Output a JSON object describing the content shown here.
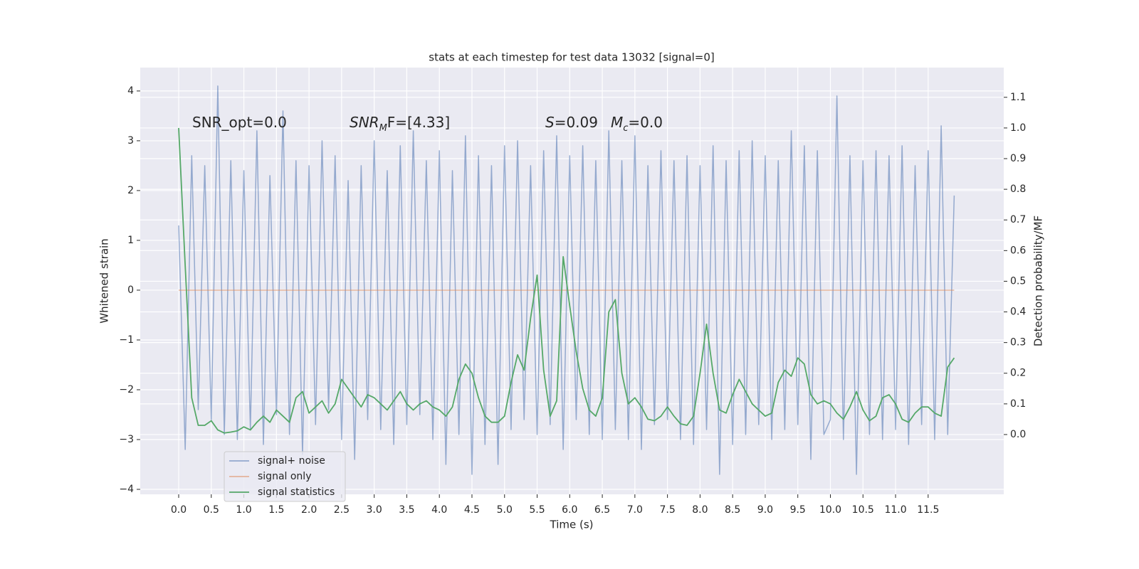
{
  "chart_data": {
    "type": "line",
    "title": "stats at each timestep for test data 13032 [signal=0]",
    "xlabel": "Time (s)",
    "ylabel": "Whitened strain",
    "y2label": "Detection probability/MF",
    "annotations": [
      [
        {
          "text": "SNR_opt=0.0"
        }
      ],
      [
        {
          "text": "SNR",
          "italic": true
        },
        {
          "text": "M",
          "italic": true,
          "sub": true
        },
        {
          "text": "F=[4.33]"
        }
      ],
      [
        {
          "text": "S",
          "italic": true
        },
        {
          "text": "=0.09"
        }
      ],
      [
        {
          "text": "M",
          "italic": true
        },
        {
          "text": "c",
          "italic": true,
          "sub": true
        },
        {
          "text": "=0.0"
        }
      ]
    ],
    "x": [
      0.0,
      0.1,
      0.2,
      0.3,
      0.4,
      0.5,
      0.6,
      0.7,
      0.8,
      0.9,
      1.0,
      1.1,
      1.2,
      1.3,
      1.4,
      1.5,
      1.6,
      1.7,
      1.8,
      1.9,
      2.0,
      2.1,
      2.2,
      2.3,
      2.4,
      2.5,
      2.6,
      2.7,
      2.8,
      2.9,
      3.0,
      3.1,
      3.2,
      3.3,
      3.4,
      3.5,
      3.6,
      3.7,
      3.8,
      3.9,
      4.0,
      4.1,
      4.2,
      4.3,
      4.4,
      4.5,
      4.6,
      4.7,
      4.8,
      4.9,
      5.0,
      5.1,
      5.2,
      5.3,
      5.4,
      5.5,
      5.6,
      5.7,
      5.8,
      5.9,
      6.0,
      6.1,
      6.2,
      6.3,
      6.4,
      6.5,
      6.6,
      6.7,
      6.8,
      6.9,
      7.0,
      7.1,
      7.2,
      7.3,
      7.4,
      7.5,
      7.6,
      7.7,
      7.8,
      7.9,
      8.0,
      8.1,
      8.2,
      8.3,
      8.4,
      8.5,
      8.6,
      8.7,
      8.8,
      8.9,
      9.0,
      9.1,
      9.2,
      9.3,
      9.4,
      9.5,
      9.6,
      9.7,
      9.8,
      9.9,
      10.0,
      10.1,
      10.2,
      10.3,
      10.4,
      10.5,
      10.6,
      10.7,
      10.8,
      10.9,
      11.0,
      11.1,
      11.2,
      11.3,
      11.4,
      11.5,
      11.6,
      11.7,
      11.8,
      11.9
    ],
    "series": [
      {
        "name": "signal+ noise",
        "color": "#4c72b0",
        "values": [
          1.3,
          -3.2,
          2.7,
          -2.4,
          2.5,
          -2.6,
          4.1,
          -2.9,
          2.6,
          -3.0,
          2.4,
          -2.8,
          3.2,
          -3.1,
          2.3,
          -2.5,
          3.6,
          -2.9,
          2.6,
          -3.3,
          2.5,
          -2.7,
          3.0,
          -2.4,
          2.7,
          -3.0,
          2.2,
          -3.4,
          2.5,
          -2.6,
          3.0,
          -2.8,
          2.4,
          -3.1,
          2.9,
          -2.7,
          3.2,
          -2.5,
          2.6,
          -3.0,
          2.8,
          -3.5,
          2.4,
          -2.9,
          3.1,
          -3.7,
          2.7,
          -3.1,
          2.5,
          -3.5,
          2.9,
          -2.8,
          3.0,
          -2.6,
          2.5,
          -2.9,
          2.8,
          -2.7,
          3.1,
          -3.2,
          2.7,
          -2.6,
          2.9,
          -2.9,
          2.6,
          -3.0,
          3.2,
          -2.8,
          2.6,
          -3.0,
          3.1,
          -3.2,
          2.5,
          -2.7,
          2.8,
          -2.6,
          2.6,
          -3.0,
          2.7,
          -3.1,
          2.5,
          -2.8,
          2.9,
          -3.7,
          2.6,
          -3.1,
          2.8,
          -2.9,
          3.0,
          -2.7,
          2.7,
          -3.0,
          2.6,
          -2.8,
          3.2,
          -2.7,
          2.9,
          -3.4,
          2.8,
          -2.9,
          -2.6,
          3.9,
          -3.0,
          2.7,
          -3.7,
          2.6,
          -2.9,
          2.8,
          -3.0,
          2.7,
          -2.8,
          2.9,
          -3.1,
          2.5,
          -2.7,
          2.8,
          -3.0,
          3.3,
          -2.9,
          1.9
        ]
      },
      {
        "name": "signal only",
        "color": "#dd8452",
        "values": [
          0,
          0,
          0,
          0,
          0,
          0,
          0,
          0,
          0,
          0,
          0,
          0,
          0,
          0,
          0,
          0,
          0,
          0,
          0,
          0,
          0,
          0,
          0,
          0,
          0,
          0,
          0,
          0,
          0,
          0,
          0,
          0,
          0,
          0,
          0,
          0,
          0,
          0,
          0,
          0,
          0,
          0,
          0,
          0,
          0,
          0,
          0,
          0,
          0,
          0,
          0,
          0,
          0,
          0,
          0,
          0,
          0,
          0,
          0,
          0,
          0,
          0,
          0,
          0,
          0,
          0,
          0,
          0,
          0,
          0,
          0,
          0,
          0,
          0,
          0,
          0,
          0,
          0,
          0,
          0,
          0,
          0,
          0,
          0,
          0,
          0,
          0,
          0,
          0,
          0,
          0,
          0,
          0,
          0,
          0,
          0,
          0,
          0,
          0,
          0,
          0,
          0,
          0,
          0,
          0,
          0,
          0,
          0,
          0,
          0,
          0,
          0,
          0,
          0,
          0,
          0,
          0,
          0,
          0,
          0
        ]
      },
      {
        "name": "signal statistics",
        "color": "#55a868",
        "axis": "y2",
        "values": [
          1.0,
          0.55,
          0.12,
          0.03,
          0.03,
          0.045,
          0.015,
          0.005,
          0.008,
          0.012,
          0.025,
          0.015,
          0.04,
          0.06,
          0.04,
          0.08,
          0.06,
          0.04,
          0.12,
          0.14,
          0.07,
          0.09,
          0.11,
          0.07,
          0.1,
          0.18,
          0.15,
          0.12,
          0.09,
          0.13,
          0.12,
          0.1,
          0.08,
          0.11,
          0.14,
          0.1,
          0.08,
          0.1,
          0.11,
          0.09,
          0.08,
          0.06,
          0.09,
          0.18,
          0.23,
          0.2,
          0.12,
          0.06,
          0.04,
          0.04,
          0.06,
          0.17,
          0.26,
          0.21,
          0.38,
          0.52,
          0.21,
          0.06,
          0.11,
          0.58,
          0.42,
          0.27,
          0.15,
          0.08,
          0.06,
          0.12,
          0.4,
          0.44,
          0.2,
          0.1,
          0.12,
          0.09,
          0.05,
          0.045,
          0.06,
          0.09,
          0.06,
          0.035,
          0.03,
          0.06,
          0.2,
          0.36,
          0.2,
          0.08,
          0.07,
          0.13,
          0.18,
          0.14,
          0.1,
          0.08,
          0.06,
          0.07,
          0.17,
          0.21,
          0.19,
          0.25,
          0.23,
          0.13,
          0.1,
          0.11,
          0.1,
          0.07,
          0.05,
          0.09,
          0.14,
          0.08,
          0.045,
          0.06,
          0.12,
          0.13,
          0.1,
          0.05,
          0.04,
          0.07,
          0.09,
          0.09,
          0.07,
          0.06,
          0.22,
          0.25
        ]
      }
    ],
    "xlim": [
      -0.59,
      12.66
    ],
    "xticks": [
      {
        "value": 0,
        "label": "0.0"
      },
      {
        "value": 0.5,
        "label": "0.5"
      },
      {
        "value": 1,
        "label": "1.0"
      },
      {
        "value": 1.5,
        "label": "1.5"
      },
      {
        "value": 2,
        "label": "2.0"
      },
      {
        "value": 2.5,
        "label": "2.5"
      },
      {
        "value": 3,
        "label": "3.0"
      },
      {
        "value": 3.5,
        "label": "3.5"
      },
      {
        "value": 4,
        "label": "4.0"
      },
      {
        "value": 4.5,
        "label": "4.5"
      },
      {
        "value": 5,
        "label": "5.0"
      },
      {
        "value": 5.5,
        "label": "5.5"
      },
      {
        "value": 6,
        "label": "6.0"
      },
      {
        "value": 6.5,
        "label": "6.5"
      },
      {
        "value": 7,
        "label": "7.0"
      },
      {
        "value": 7.5,
        "label": "7.5"
      },
      {
        "value": 8,
        "label": "8.0"
      },
      {
        "value": 8.5,
        "label": "8.5"
      },
      {
        "value": 9,
        "label": "9.0"
      },
      {
        "value": 9.5,
        "label": "9.5"
      },
      {
        "value": 10,
        "label": "10.0"
      },
      {
        "value": 10.5,
        "label": "10.5"
      },
      {
        "value": 11,
        "label": "11.0"
      },
      {
        "value": 11.5,
        "label": "11.5"
      }
    ],
    "ylim": [
      -4.1,
      4.47
    ],
    "yticks": [
      {
        "value": -4,
        "label": "−4"
      },
      {
        "value": -3,
        "label": "−3"
      },
      {
        "value": -2,
        "label": "−2"
      },
      {
        "value": -1,
        "label": "−1"
      },
      0,
      1,
      2,
      3,
      4
    ],
    "y2lim": [
      -0.195,
      1.197
    ],
    "y2ticks": [
      {
        "value": 0,
        "label": "0.0"
      },
      {
        "value": 0.1,
        "label": "0.1"
      },
      {
        "value": 0.2,
        "label": "0.2"
      },
      {
        "value": 0.3,
        "label": "0.3"
      },
      {
        "value": 0.4,
        "label": "0.4"
      },
      {
        "value": 0.5,
        "label": "0.5"
      },
      {
        "value": 0.6,
        "label": "0.6"
      },
      {
        "value": 0.7,
        "label": "0.7"
      },
      {
        "value": 0.8,
        "label": "0.8"
      },
      {
        "value": 0.9,
        "label": "0.9"
      },
      {
        "value": 1,
        "label": "1.0"
      },
      {
        "value": 1.1,
        "label": "1.1"
      }
    ],
    "grid": true
  }
}
